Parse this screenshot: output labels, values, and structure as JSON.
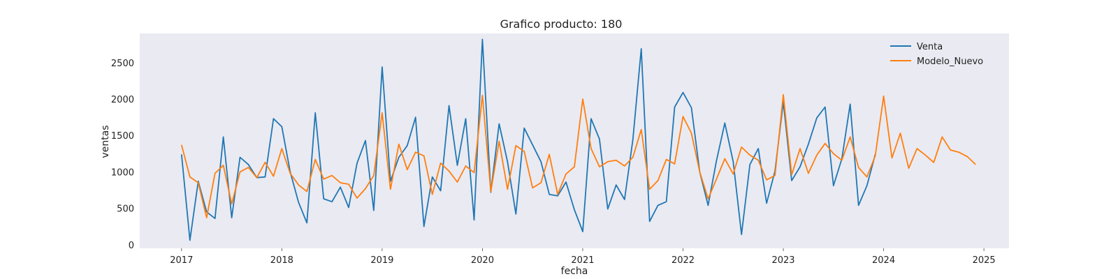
{
  "chart_data": {
    "type": "line",
    "title": "Grafico producto: 180",
    "xlabel": "fecha",
    "ylabel": "ventas",
    "xlim": [
      "2016-08-01",
      "2025-04-01"
    ],
    "ylim": [
      -50,
      2900
    ],
    "x_ticks": [
      "2017",
      "2018",
      "2019",
      "2020",
      "2021",
      "2022",
      "2023",
      "2024",
      "2025"
    ],
    "y_ticks": [
      0,
      500,
      1000,
      1500,
      2000,
      2500
    ],
    "grid": false,
    "legend_position": "top-right",
    "background_color": "#eaeaf2",
    "series": [
      {
        "name": "Venta",
        "color": "#1f77b4",
        "x": [
          "2017-01",
          "2017-02",
          "2017-03",
          "2017-04",
          "2017-05",
          "2017-06",
          "2017-07",
          "2017-08",
          "2017-09",
          "2017-10",
          "2017-11",
          "2017-12",
          "2018-01",
          "2018-02",
          "2018-03",
          "2018-04",
          "2018-05",
          "2018-06",
          "2018-07",
          "2018-08",
          "2018-09",
          "2018-10",
          "2018-11",
          "2018-12",
          "2019-01",
          "2019-02",
          "2019-03",
          "2019-04",
          "2019-05",
          "2019-06",
          "2019-07",
          "2019-08",
          "2019-09",
          "2019-10",
          "2019-11",
          "2019-12",
          "2020-01",
          "2020-02",
          "2020-03",
          "2020-04",
          "2020-05",
          "2020-06",
          "2020-07",
          "2020-08",
          "2020-09",
          "2020-10",
          "2020-11",
          "2020-12",
          "2021-01",
          "2021-02",
          "2021-03",
          "2021-04",
          "2021-05",
          "2021-06",
          "2021-07",
          "2021-08",
          "2021-09",
          "2021-10",
          "2021-11",
          "2021-12",
          "2022-01",
          "2022-02",
          "2022-03",
          "2022-04",
          "2022-05",
          "2022-06",
          "2022-07",
          "2022-08",
          "2022-09",
          "2022-10",
          "2022-11",
          "2022-12",
          "2023-01",
          "2023-02",
          "2023-03",
          "2023-04",
          "2023-05",
          "2023-06",
          "2023-07",
          "2023-08",
          "2023-09",
          "2023-10",
          "2023-11",
          "2023-12"
        ],
        "y": [
          1240,
          60,
          870,
          450,
          360,
          1480,
          370,
          1200,
          1100,
          920,
          930,
          1730,
          1620,
          1000,
          580,
          300,
          1810,
          630,
          590,
          790,
          510,
          1120,
          1430,
          470,
          2440,
          870,
          1200,
          1360,
          1750,
          250,
          930,
          740,
          1910,
          1090,
          1730,
          340,
          2820,
          720,
          1660,
          1140,
          420,
          1600,
          1370,
          1140,
          690,
          670,
          860,
          480,
          180,
          1730,
          1450,
          490,
          820,
          620,
          1440,
          2690,
          320,
          540,
          590,
          1890,
          2090,
          1880,
          1000,
          540,
          1150,
          1670,
          1140,
          140,
          1100,
          1320,
          570,
          1010,
          1960,
          880,
          1070,
          1380,
          1740,
          1890,
          810,
          1180,
          1930,
          540,
          810,
          1240
        ]
      },
      {
        "name": "Modelo_Nuevo",
        "color": "#ff7f0e",
        "x": [
          "2017-01",
          "2017-02",
          "2017-03",
          "2017-04",
          "2017-05",
          "2017-06",
          "2017-07",
          "2017-08",
          "2017-09",
          "2017-10",
          "2017-11",
          "2017-12",
          "2018-01",
          "2018-02",
          "2018-03",
          "2018-04",
          "2018-05",
          "2018-06",
          "2018-07",
          "2018-08",
          "2018-09",
          "2018-10",
          "2018-11",
          "2018-12",
          "2019-01",
          "2019-02",
          "2019-03",
          "2019-04",
          "2019-05",
          "2019-06",
          "2019-07",
          "2019-08",
          "2019-09",
          "2019-10",
          "2019-11",
          "2019-12",
          "2020-01",
          "2020-02",
          "2020-03",
          "2020-04",
          "2020-05",
          "2020-06",
          "2020-07",
          "2020-08",
          "2020-09",
          "2020-10",
          "2020-11",
          "2020-12",
          "2021-01",
          "2021-02",
          "2021-03",
          "2021-04",
          "2021-05",
          "2021-06",
          "2021-07",
          "2021-08",
          "2021-09",
          "2021-10",
          "2021-11",
          "2021-12",
          "2022-01",
          "2022-02",
          "2022-03",
          "2022-04",
          "2022-05",
          "2022-06",
          "2022-07",
          "2022-08",
          "2022-09",
          "2022-10",
          "2022-11",
          "2022-12",
          "2023-01",
          "2023-02",
          "2023-03",
          "2023-04",
          "2023-05",
          "2023-06",
          "2023-07",
          "2023-08",
          "2023-09",
          "2023-10",
          "2023-11",
          "2023-12",
          "2024-01",
          "2024-02",
          "2024-03",
          "2024-04",
          "2024-05",
          "2024-06",
          "2024-07",
          "2024-08",
          "2024-09",
          "2024-10",
          "2024-11",
          "2024-12"
        ],
        "y": [
          1370,
          930,
          850,
          370,
          980,
          1090,
          560,
          1000,
          1060,
          920,
          1130,
          940,
          1320,
          980,
          820,
          730,
          1170,
          900,
          950,
          850,
          830,
          640,
          770,
          950,
          1810,
          760,
          1380,
          1030,
          1270,
          1220,
          690,
          1120,
          1010,
          860,
          1080,
          990,
          2050,
          730,
          1420,
          760,
          1360,
          1280,
          780,
          850,
          1240,
          690,
          970,
          1070,
          2000,
          1320,
          1070,
          1140,
          1160,
          1080,
          1200,
          1580,
          760,
          880,
          1170,
          1110,
          1760,
          1530,
          1000,
          630,
          900,
          1180,
          970,
          1340,
          1230,
          1160,
          890,
          950,
          2060,
          960,
          1320,
          980,
          1230,
          1390,
          1250,
          1160,
          1480,
          1060,
          930,
          1220,
          2040,
          1190,
          1530,
          1050,
          1320,
          1230,
          1130,
          1480,
          1300,
          1270,
          1210,
          1100
        ]
      }
    ]
  }
}
